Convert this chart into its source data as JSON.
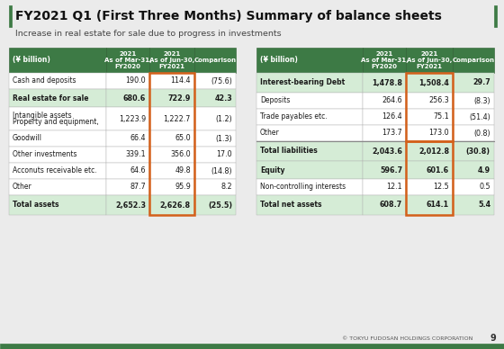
{
  "title": "FY2021 Q1 (First Three Months) Summary of balance sheets",
  "subtitle": "Increase in real estate for sale due to progress in investments",
  "footer": "© TOKYU FUDOSAN HOLDINGS CORPORATION",
  "page_number": "9",
  "bg_color": "#ebebeb",
  "header_green": "#3d7a45",
  "light_green": "#d5ecd6",
  "white": "#ffffff",
  "orange_border": "#d4601a",
  "left_table": {
    "col_labels": [
      "(¥ billion)",
      "FY2020\nAs of Mar-31,\n2021",
      "FY2021\nAs of Jun-30,\n2021",
      "Comparison"
    ],
    "rows": [
      [
        "Cash and deposits",
        "190.0",
        "114.4",
        "(75.6)",
        false,
        false
      ],
      [
        "Real estate for sale",
        "680.6",
        "722.9",
        "42.3",
        true,
        false
      ],
      [
        "Property and equipment,\nIntangible assets",
        "1,223.9",
        "1,222.7",
        "(1.2)",
        false,
        false
      ],
      [
        "Goodwill",
        "66.4",
        "65.0",
        "(1.3)",
        false,
        false
      ],
      [
        "Other investments",
        "339.1",
        "356.0",
        "17.0",
        false,
        false
      ],
      [
        "Acconuts receivable etc.",
        "64.6",
        "49.8",
        "(14.8)",
        false,
        false
      ],
      [
        "Other",
        "87.7",
        "95.9",
        "8.2",
        false,
        false
      ],
      [
        "Total assets",
        "2,652.3",
        "2,626.8",
        "(25.5)",
        true,
        true
      ]
    ]
  },
  "right_table": {
    "col_labels": [
      "(¥ billion)",
      "FY2020\nAs of Mar-31,\n2021",
      "FY2021\nAs of Jun-30,\n2021",
      "Comparison"
    ],
    "rows": [
      [
        "Interest-bearing Debt",
        "1,478.8",
        "1,508.4",
        "29.7",
        true,
        false
      ],
      [
        "Deposits",
        "264.6",
        "256.3",
        "(8.3)",
        false,
        false
      ],
      [
        "Trade payables etc.",
        "126.4",
        "75.1",
        "(51.4)",
        false,
        false
      ],
      [
        "Other",
        "173.7",
        "173.0",
        "(0.8)",
        false,
        false
      ],
      [
        "Total liabilities",
        "2,043.6",
        "2,012.8",
        "(30.8)",
        true,
        true
      ],
      [
        "Equity",
        "596.7",
        "601.6",
        "4.9",
        true,
        false
      ],
      [
        "Non-controlling interests",
        "12.1",
        "12.5",
        "0.5",
        false,
        false
      ],
      [
        "Total net assets",
        "608.7",
        "614.1",
        "5.4",
        true,
        true
      ]
    ],
    "separator_after": 4
  }
}
